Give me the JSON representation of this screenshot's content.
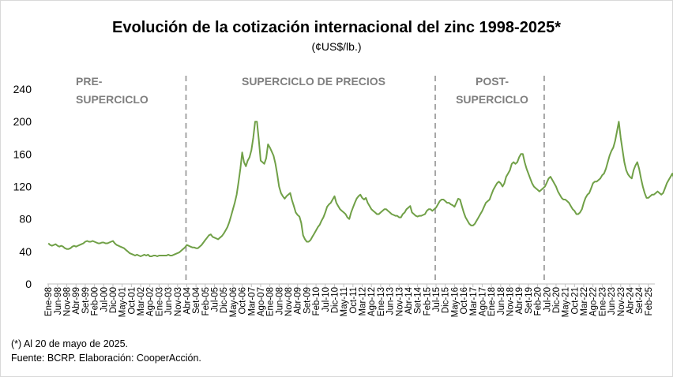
{
  "title": "Evolución de la cotización internacional del zinc 1998-2025*",
  "subtitle": "(¢US$/lb.)",
  "notes": {
    "footnote": "(*) Al 20 de mayo de 2025.",
    "source": "Fuente: BCRP. Elaboración: CooperAcción."
  },
  "colors": {
    "line": "#70a047",
    "divider": "#a6a6a6",
    "axis": "#bfbfbf",
    "period_text": "#7f7f7f"
  },
  "chart_data": {
    "type": "line",
    "title": "Evolución de la cotización internacional del zinc 1998-2025*",
    "ylabel": "(¢US$/lb.)",
    "ylim": [
      0,
      240
    ],
    "yticks": [
      0,
      40,
      80,
      120,
      160,
      200,
      240
    ],
    "grid": false,
    "legend": "none",
    "xtick_labels": [
      "Ene-98",
      "Jun-98",
      "Nov-98",
      "Abr-99",
      "Set-99",
      "Feb-00",
      "Jul-00",
      "Dic-00",
      "May-01",
      "Oct-01",
      "Mar-02",
      "Ago-02",
      "Ene-03",
      "Jun-03",
      "Nov-03",
      "Abr-04",
      "Set-04",
      "Feb-05",
      "Jul-05",
      "Dic-05",
      "May-06",
      "Oct-06",
      "Mar-07",
      "Ago-07",
      "Ene-08",
      "Jun-08",
      "Nov-08",
      "Abr-09",
      "Set-09",
      "Feb-10",
      "Jul-10",
      "Dic-10",
      "May-11",
      "Oct-11",
      "Mar-12",
      "Ago-12",
      "Ene-13",
      "Jun-13",
      "Nov-13",
      "Abr-14",
      "Set-14",
      "Feb-15",
      "Jul-15",
      "Dic-15",
      "May-16",
      "Oct-16",
      "Mar-17",
      "Ago-17",
      "Ene-18",
      "Jun-18",
      "Nov-18",
      "Abr-19",
      "Set-19",
      "Feb-20",
      "Jul-20",
      "Dic-20",
      "May-21",
      "Oct-21",
      "Mar-22",
      "Ago-22",
      "Ene-23",
      "Jun-23",
      "Nov-23",
      "Abr-24",
      "Set-24",
      "Feb-25"
    ],
    "periods": [
      {
        "label_lines": [
          "PRE-",
          "SUPERCICLO"
        ],
        "from_month_index": 0
      },
      {
        "label_lines": [
          "SUPERCICLO DE PRECIOS"
        ],
        "from_month_index": 75
      },
      {
        "label_lines": [
          "POST-",
          "SUPERCICLO"
        ],
        "from_month_index": 210
      }
    ],
    "dividers_month_index": [
      75,
      210,
      269
    ],
    "series": [
      {
        "values": [
          50,
          48,
          47,
          48,
          49,
          47,
          46,
          47,
          46,
          44,
          43,
          43,
          44,
          46,
          47,
          46,
          47,
          48,
          49,
          50,
          52,
          53,
          52,
          52,
          53,
          52,
          51,
          50,
          50,
          51,
          51,
          50,
          50,
          51,
          52,
          53,
          50,
          48,
          47,
          46,
          45,
          44,
          42,
          40,
          38,
          37,
          36,
          35,
          36,
          35,
          34,
          35,
          36,
          35,
          36,
          34,
          34,
          35,
          35,
          34,
          35,
          35,
          35,
          35,
          35,
          36,
          35,
          35,
          36,
          37,
          38,
          39,
          41,
          43,
          45,
          48,
          47,
          46,
          45,
          45,
          44,
          44,
          46,
          48,
          51,
          54,
          57,
          60,
          61,
          58,
          57,
          56,
          55,
          57,
          59,
          62,
          66,
          70,
          76,
          84,
          92,
          100,
          110,
          125,
          142,
          162,
          150,
          145,
          152,
          156,
          165,
          180,
          200,
          200,
          178,
          152,
          150,
          148,
          155,
          172,
          168,
          163,
          158,
          148,
          135,
          120,
          112,
          108,
          105,
          108,
          110,
          112,
          103,
          96,
          88,
          85,
          83,
          75,
          60,
          55,
          52,
          52,
          54,
          58,
          62,
          66,
          70,
          73,
          78,
          82,
          88,
          95,
          98,
          100,
          104,
          108,
          100,
          96,
          92,
          90,
          88,
          86,
          82,
          80,
          88,
          94,
          100,
          105,
          108,
          110,
          106,
          104,
          106,
          100,
          96,
          92,
          90,
          88,
          86,
          86,
          88,
          90,
          92,
          92,
          90,
          88,
          86,
          85,
          84,
          84,
          82,
          82,
          86,
          88,
          92,
          94,
          96,
          88,
          86,
          84,
          83,
          84,
          84,
          85,
          86,
          90,
          92,
          92,
          90,
          92,
          94,
          98,
          102,
          104,
          104,
          102,
          100,
          100,
          98,
          97,
          95,
          100,
          105,
          104,
          96,
          88,
          82,
          78,
          74,
          72,
          72,
          74,
          78,
          82,
          86,
          90,
          95,
          100,
          102,
          104,
          110,
          116,
          120,
          124,
          126,
          124,
          120,
          124,
          132,
          136,
          140,
          148,
          150,
          148,
          150,
          156,
          160,
          160,
          150,
          142,
          136,
          130,
          124,
          120,
          118,
          116,
          114,
          116,
          118,
          120,
          125,
          130,
          132,
          128,
          124,
          120,
          114,
          110,
          106,
          104,
          104,
          102,
          100,
          96,
          92,
          90,
          86,
          86,
          88,
          92,
          100,
          106,
          110,
          112,
          118,
          124,
          126,
          126,
          128,
          130,
          134,
          136,
          142,
          150,
          158,
          164,
          168,
          176,
          188,
          200,
          180,
          165,
          150,
          140,
          135,
          132,
          130,
          140,
          146,
          150,
          142,
          130,
          120,
          112,
          106,
          106,
          108,
          110,
          110,
          112,
          114,
          112,
          110,
          112,
          118,
          124,
          128,
          132,
          136,
          130,
          126,
          130,
          140,
          142,
          138,
          132,
          128,
          126,
          120
        ]
      }
    ]
  }
}
